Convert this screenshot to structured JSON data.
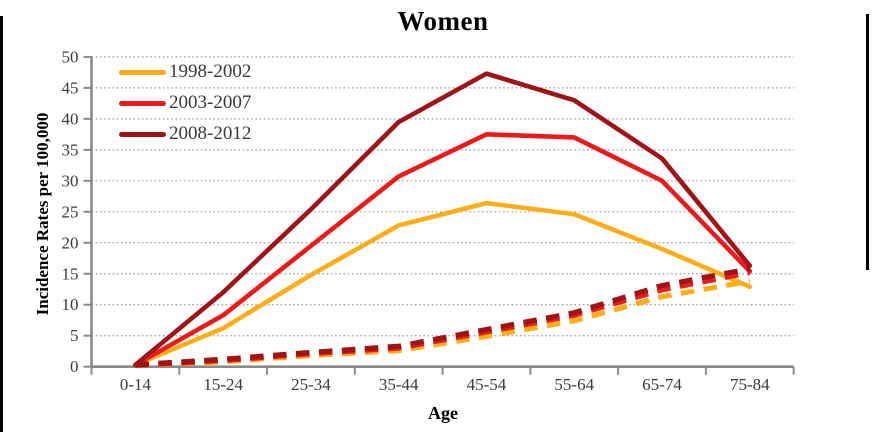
{
  "figure": {
    "title": "Women",
    "x_axis_title": "Age",
    "y_axis_title": "Incidence Rates per 100,000",
    "legend": [
      {
        "label": "1998-2002",
        "color": "#FBAE17"
      },
      {
        "label": "2003-2007",
        "color": "#EC1B1B"
      },
      {
        "label": "2008-2012",
        "color": "#A01317"
      }
    ]
  },
  "chart_data": {
    "type": "line",
    "title": "Women",
    "xlabel": "Age",
    "ylabel": "Incidence Rates per 100,000",
    "categories": [
      "0-14",
      "15-24",
      "25-34",
      "35-44",
      "45-54",
      "55-64",
      "65-74",
      "75-84"
    ],
    "y_ticks": [
      0,
      5,
      10,
      15,
      20,
      25,
      30,
      35,
      40,
      45,
      50
    ],
    "ylim": [
      0,
      50
    ],
    "grid": "horizontal dotted gridlines",
    "legend_position": "top-left inside plot",
    "series": [
      {
        "name": "1998-2002",
        "style": "solid",
        "color": "#FBAE17",
        "values": [
          0.3,
          6.2,
          14.8,
          22.8,
          26.4,
          24.6,
          19.0,
          12.9
        ]
      },
      {
        "name": "2003-2007",
        "style": "solid",
        "color": "#EC1B1B",
        "values": [
          0.3,
          8.3,
          19.5,
          30.7,
          37.5,
          37.0,
          30.0,
          15.4
        ]
      },
      {
        "name": "2008-2012",
        "style": "solid",
        "color": "#A01317",
        "values": [
          0.3,
          12.0,
          25.4,
          39.5,
          47.3,
          43.0,
          33.6,
          16.3
        ]
      },
      {
        "name": "1998-2002 dashed",
        "style": "dashed",
        "color": "#FBAE17",
        "values": [
          0.2,
          0.8,
          1.8,
          2.6,
          4.9,
          7.4,
          11.3,
          13.8
        ]
      },
      {
        "name": "2003-2007 dashed",
        "style": "dashed",
        "color": "#EC1B1B",
        "values": [
          0.2,
          1.0,
          2.1,
          3.0,
          5.6,
          8.3,
          12.4,
          15.2
        ]
      },
      {
        "name": "2008-2012 dashed",
        "style": "dashed",
        "color": "#A01317",
        "values": [
          0.3,
          1.2,
          2.3,
          3.3,
          6.0,
          8.7,
          13.1,
          15.8
        ]
      }
    ]
  }
}
